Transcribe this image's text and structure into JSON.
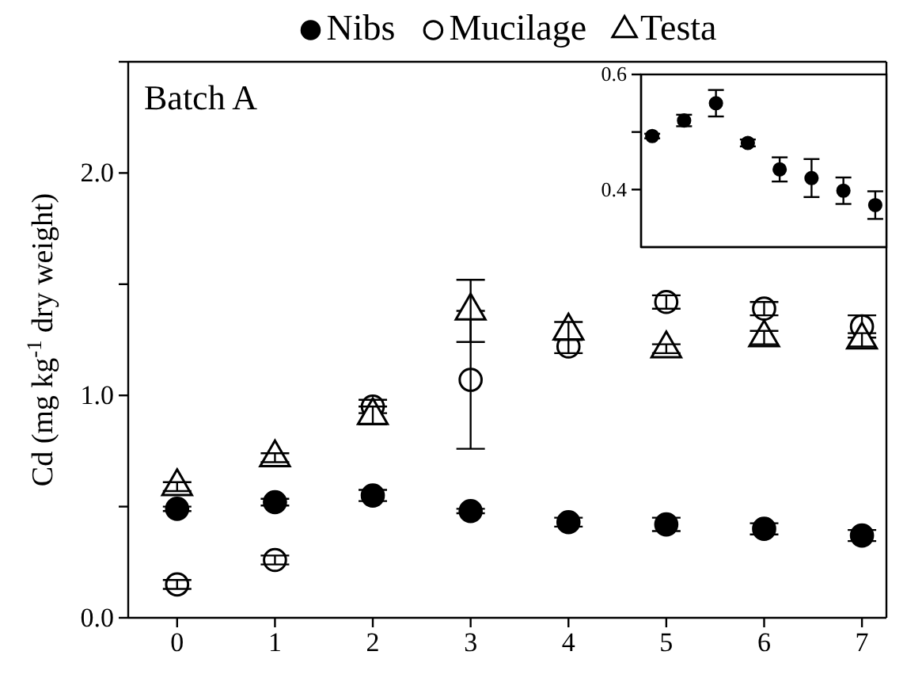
{
  "chart_data": [
    {
      "type": "scatter",
      "ylabel": "Cd (mg kg$^{-1}$ dry weight)",
      "annotations": [
        "Batch A"
      ],
      "x": [
        0,
        1,
        2,
        3,
        4,
        5,
        6,
        7
      ],
      "xlim": [
        -0.5,
        7.25
      ],
      "xticks": [
        0,
        1,
        2,
        3,
        4,
        5,
        6,
        7
      ],
      "ylim": [
        0,
        2.5
      ],
      "yticks": [
        {
          "value": 0,
          "label": "0.0"
        },
        {
          "value": 0.5,
          "label": null
        },
        {
          "value": 1,
          "label": "1.0"
        },
        {
          "value": 1.5,
          "label": null
        },
        {
          "value": 2,
          "label": "2.0"
        },
        {
          "value": 2.5,
          "label": null
        }
      ],
      "legend": "top",
      "grid": false,
      "series": [
        {
          "name": "Nibs",
          "color": "#000000",
          "marker": "circle",
          "values": [
            0.49,
            0.52,
            0.55,
            0.48,
            0.43,
            0.42,
            0.4,
            0.37
          ],
          "errors": [
            0.01,
            0.015,
            0.025,
            0.01,
            0.02,
            0.03,
            0.025,
            0.025
          ]
        },
        {
          "name": "Mucilage",
          "color": "#ffffff",
          "marker": "circle",
          "values": [
            0.15,
            0.26,
            0.95,
            1.07,
            1.22,
            1.42,
            1.39,
            1.31
          ],
          "errors": [
            0.02,
            0.02,
            0.03,
            0.31,
            0.03,
            0.03,
            0.03,
            0.05
          ]
        },
        {
          "name": "Testa",
          "color": "#ffffff",
          "marker": "triangle",
          "values": [
            0.59,
            0.72,
            0.91,
            1.38,
            1.29,
            1.21,
            1.26,
            1.25
          ],
          "errors": [
            0.02,
            0.02,
            0.04,
            0.14,
            0.04,
            0.02,
            0.03,
            0.03
          ]
        }
      ]
    },
    {
      "type": "scatter",
      "categories": [
        null,
        null,
        null,
        null,
        null,
        null,
        null,
        null
      ],
      "ylim": [
        0.3,
        0.6
      ],
      "yticks": [
        {
          "value": 0.4,
          "label": "0.4"
        },
        {
          "value": 0.5,
          "label": null
        },
        {
          "value": 0.6,
          "label": "0.6"
        }
      ],
      "tick_labels": "y",
      "series": [
        {
          "color": "#000000",
          "marker": "circle",
          "values": [
            0.493,
            0.52,
            0.55,
            0.481,
            0.435,
            0.42,
            0.398,
            0.373
          ],
          "errors": [
            0.004,
            0.01,
            0.023,
            0.006,
            0.021,
            0.033,
            0.023,
            0.024
          ]
        }
      ]
    }
  ]
}
